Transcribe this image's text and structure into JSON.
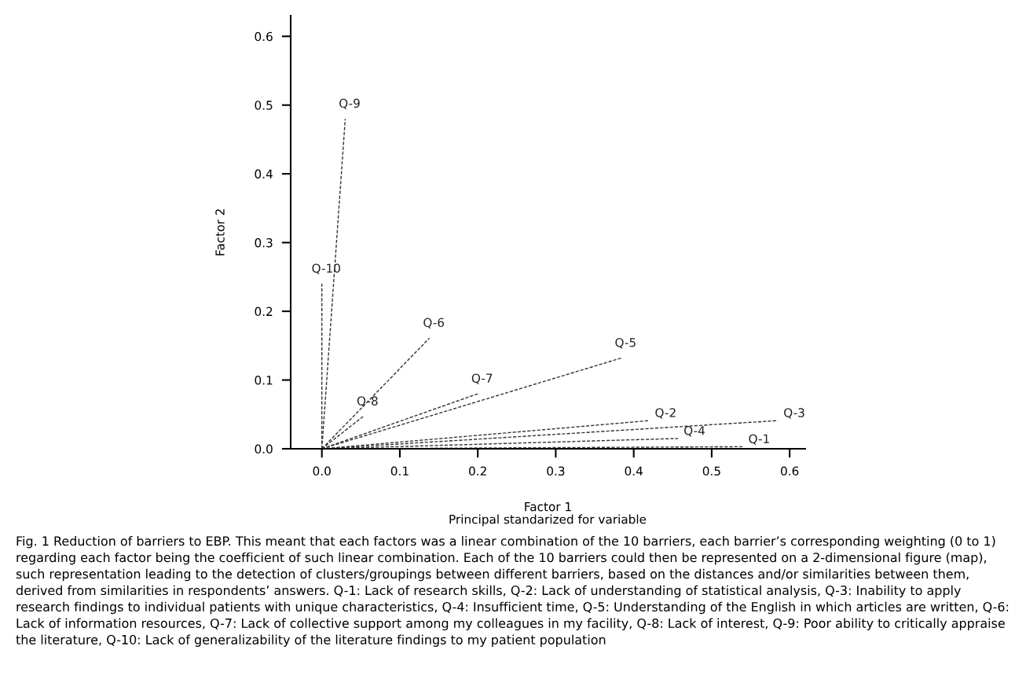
{
  "chart_data": {
    "type": "line",
    "xlabel": "Factor 1",
    "ylabel": "Factor 2",
    "xlim": [
      -0.04,
      0.62
    ],
    "ylim": [
      0,
      0.63
    ],
    "xticks": [
      {
        "value": 0,
        "label": "0.0"
      },
      0.1,
      0.2,
      0.3,
      0.4,
      0.5,
      0.6
    ],
    "yticks": [
      {
        "value": 0,
        "label": "0.0"
      },
      0.1,
      0.2,
      0.3,
      0.4,
      0.5,
      0.6
    ],
    "grid": false,
    "legend": false,
    "marker": "none",
    "line_style": "dashed",
    "series": [
      {
        "name": "Q-1",
        "color": "#333333",
        "x": [
          0,
          0.54
        ],
        "values": [
          0,
          0.003
        ]
      },
      {
        "name": "Q-2",
        "color": "#333333",
        "x": [
          0,
          0.42
        ],
        "values": [
          0,
          0.041
        ]
      },
      {
        "name": "Q-3",
        "color": "#333333",
        "x": [
          0,
          0.585
        ],
        "values": [
          0,
          0.041
        ]
      },
      {
        "name": "Q-4",
        "color": "#333333",
        "x": [
          0,
          0.457
        ],
        "values": [
          0,
          0.015
        ]
      },
      {
        "name": "Q-5",
        "color": "#333333",
        "x": [
          0,
          0.384
        ],
        "values": [
          0,
          0.132
        ]
      },
      {
        "name": "Q-6",
        "color": "#333333",
        "x": [
          0,
          0.138
        ],
        "values": [
          0,
          0.161
        ]
      },
      {
        "name": "Q-7",
        "color": "#333333",
        "x": [
          0,
          0.2
        ],
        "values": [
          0,
          0.08
        ]
      },
      {
        "name": "Q-8",
        "color": "#333333",
        "x": [
          0,
          0.053
        ],
        "values": [
          0,
          0.047
        ]
      },
      {
        "name": "Q-9",
        "color": "#333333",
        "x": [
          0,
          0.03
        ],
        "values": [
          0,
          0.48
        ]
      },
      {
        "name": "Q-10",
        "color": "#333333",
        "x": [
          0,
          0.0
        ],
        "values": [
          0,
          0.24
        ]
      }
    ],
    "annotations": [
      "Principal standarized for variable",
      "Fig. 1 Reduction of barriers to EBP. This meant that each factors was a linear combination of the 10 barriers, each barrier’s corresponding weighting (0 to 1) regarding each factor being the coefficient of such linear combination. Each of the 10 barriers could then be represented on a 2-dimensional figure (map), such representation leading to the detection of clusters/groupings between different barriers, based on the distances and/or similarities between them, derived from similarities in respondents’ answers. Q-1: Lack of research skills, Q-2: Lack of understanding of statistical analysis, Q-3: Inability to apply research findings to individual patients with unique characteristics, Q-4: Insufficient time, Q-5: Understanding of the English in which articles are written, Q-6: Lack of information resources, Q-7: Lack of collective support among my colleagues in my facility, Q-8: Lack of interest, Q-9: Poor ability to critically appraise the literature, Q-10: Lack of generalizability of the literature findings to my patient population"
    ]
  }
}
